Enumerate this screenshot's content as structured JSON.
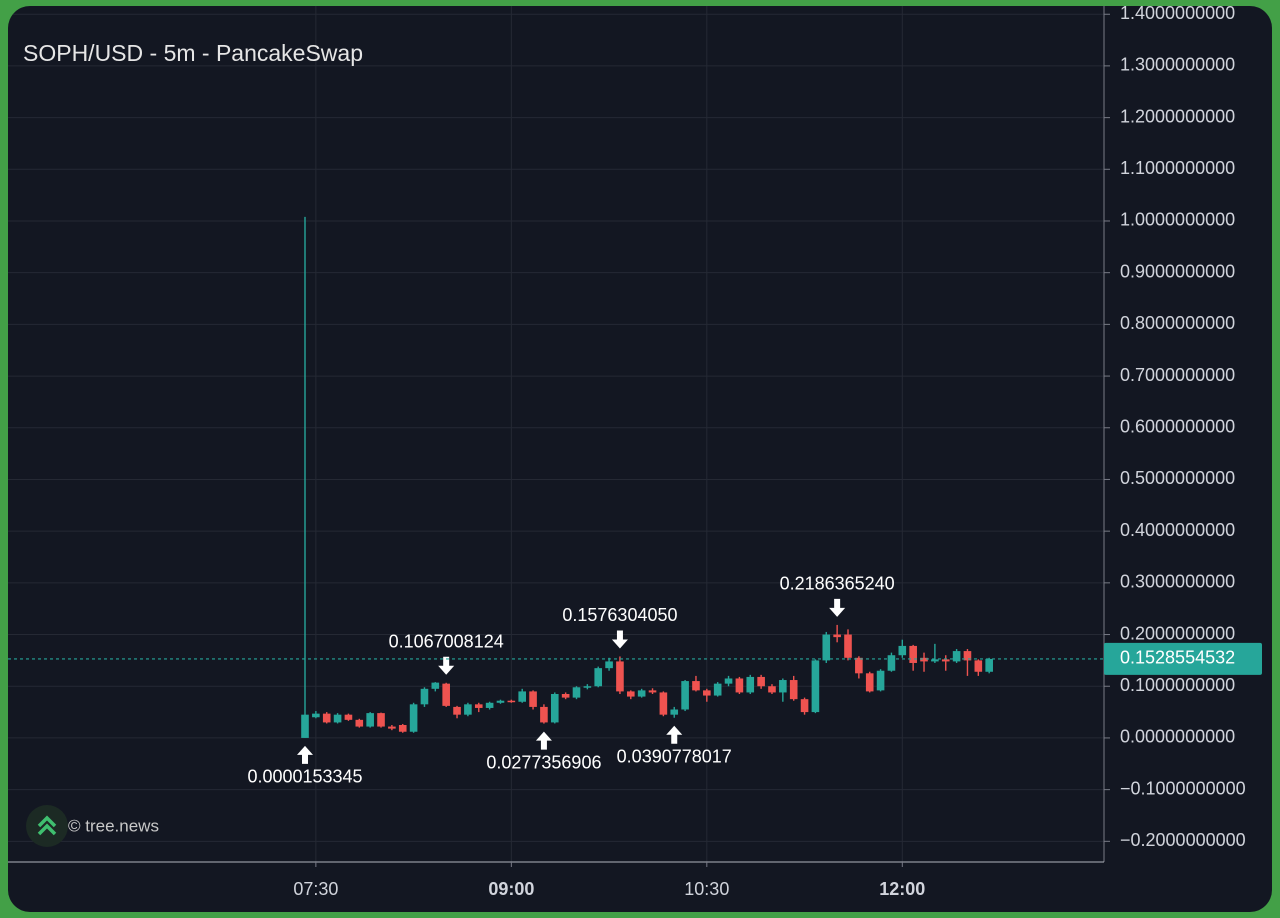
{
  "chart_data": {
    "type": "candlestick",
    "title": "SOPH/USD - 5m - PancakeSwap",
    "watermark": "© tree.news",
    "up_color": "#26a69a",
    "down_color": "#ef5350",
    "grid": true,
    "x": [
      "07:25",
      "07:30",
      "07:35",
      "07:40",
      "07:45",
      "07:50",
      "07:55",
      "08:00",
      "08:05",
      "08:10",
      "08:15",
      "08:20",
      "08:25",
      "08:30",
      "08:35",
      "08:40",
      "08:45",
      "08:50",
      "08:55",
      "09:00",
      "09:05",
      "09:10",
      "09:15",
      "09:20",
      "09:25",
      "09:30",
      "09:35",
      "09:40",
      "09:45",
      "09:50",
      "09:55",
      "10:00",
      "10:05",
      "10:10",
      "10:15",
      "10:20",
      "10:25",
      "10:30",
      "10:35",
      "10:40",
      "10:45",
      "10:50",
      "10:55",
      "11:00",
      "11:05",
      "11:10",
      "11:15",
      "11:20",
      "11:25",
      "11:30",
      "11:35",
      "11:40",
      "11:45",
      "11:50",
      "11:55",
      "12:00",
      "12:05",
      "12:10",
      "12:15",
      "12:20",
      "12:25",
      "12:30",
      "12:35",
      "12:40"
    ],
    "open": [
      2e-05,
      0.04,
      0.047,
      0.03,
      0.045,
      0.035,
      0.022,
      0.048,
      0.022,
      0.025,
      0.012,
      0.065,
      0.095,
      0.105,
      0.06,
      0.045,
      0.065,
      0.058,
      0.068,
      0.072,
      0.07,
      0.09,
      0.06,
      0.03,
      0.085,
      0.078,
      0.098,
      0.1,
      0.135,
      0.148,
      0.09,
      0.08,
      0.092,
      0.088,
      0.045,
      0.055,
      0.11,
      0.092,
      0.082,
      0.105,
      0.115,
      0.088,
      0.118,
      0.1,
      0.088,
      0.112,
      0.075,
      0.05,
      0.15,
      0.2,
      0.2,
      0.155,
      0.125,
      0.092,
      0.13,
      0.16,
      0.178,
      0.155,
      0.148,
      0.152,
      0.148,
      0.168,
      0.15,
      0.128
    ],
    "high": [
      1.0079,
      0.052,
      0.05,
      0.048,
      0.047,
      0.037,
      0.05,
      0.049,
      0.025,
      0.027,
      0.068,
      0.098,
      0.108,
      0.1067008124,
      0.062,
      0.068,
      0.068,
      0.07,
      0.074,
      0.074,
      0.095,
      0.092,
      0.065,
      0.088,
      0.088,
      0.1,
      0.104,
      0.138,
      0.155,
      0.157630405,
      0.092,
      0.095,
      0.096,
      0.09,
      0.06,
      0.112,
      0.12,
      0.095,
      0.108,
      0.12,
      0.118,
      0.122,
      0.122,
      0.104,
      0.115,
      0.12,
      0.078,
      0.152,
      0.205,
      0.218636524,
      0.21,
      0.158,
      0.128,
      0.133,
      0.165,
      0.19,
      0.18,
      0.165,
      0.182,
      0.16,
      0.172,
      0.172,
      0.152,
      0.155
    ],
    "low": [
      1.53345e-05,
      0.038,
      0.028,
      0.028,
      0.033,
      0.02,
      0.02,
      0.02,
      0.015,
      0.01,
      0.01,
      0.06,
      0.09,
      0.06,
      0.038,
      0.042,
      0.05,
      0.055,
      0.066,
      0.068,
      0.068,
      0.055,
      0.0277356906,
      0.028,
      0.075,
      0.075,
      0.094,
      0.098,
      0.13,
      0.085,
      0.075,
      0.078,
      0.085,
      0.042,
      0.0390778017,
      0.052,
      0.09,
      0.07,
      0.08,
      0.1,
      0.085,
      0.085,
      0.095,
      0.085,
      0.07,
      0.072,
      0.045,
      0.048,
      0.145,
      0.185,
      0.15,
      0.115,
      0.088,
      0.09,
      0.128,
      0.155,
      0.13,
      0.128,
      0.145,
      0.13,
      0.145,
      0.12,
      0.12,
      0.125
    ],
    "close": [
      0.045,
      0.047,
      0.03,
      0.045,
      0.035,
      0.022,
      0.048,
      0.022,
      0.018,
      0.012,
      0.065,
      0.095,
      0.107,
      0.062,
      0.045,
      0.065,
      0.058,
      0.068,
      0.072,
      0.07,
      0.09,
      0.06,
      0.03,
      0.085,
      0.078,
      0.098,
      0.1,
      0.135,
      0.148,
      0.09,
      0.08,
      0.092,
      0.088,
      0.045,
      0.055,
      0.11,
      0.092,
      0.082,
      0.105,
      0.115,
      0.088,
      0.118,
      0.1,
      0.088,
      0.112,
      0.075,
      0.05,
      0.15,
      0.2,
      0.195,
      0.155,
      0.125,
      0.09,
      0.13,
      0.16,
      0.178,
      0.145,
      0.148,
      0.152,
      0.148,
      0.168,
      0.15,
      0.128,
      0.1528554532
    ],
    "xticks": [
      "07:30",
      "09:00",
      "10:30",
      "12:00"
    ],
    "ylim": [
      -0.24,
      1.412
    ],
    "yticks": [
      {
        "value": -0.2,
        "label": "−0.2000000000"
      },
      {
        "value": -0.1,
        "label": "−0.1000000000"
      },
      {
        "value": 0,
        "label": "0.0000000000"
      },
      {
        "value": 0.1,
        "label": "0.1000000000"
      },
      {
        "value": 0.2,
        "label": "0.2000000000"
      },
      {
        "value": 0.3,
        "label": "0.3000000000"
      },
      {
        "value": 0.4,
        "label": "0.4000000000"
      },
      {
        "value": 0.5,
        "label": "0.5000000000"
      },
      {
        "value": 0.6,
        "label": "0.6000000000"
      },
      {
        "value": 0.7,
        "label": "0.7000000000"
      },
      {
        "value": 0.8,
        "label": "0.8000000000"
      },
      {
        "value": 0.9,
        "label": "0.9000000000"
      },
      {
        "value": 1.0,
        "label": "1.0000000000"
      },
      {
        "value": 1.1,
        "label": "1.1000000000"
      },
      {
        "value": 1.2,
        "label": "1.2000000000"
      },
      {
        "value": 1.3,
        "label": "1.3000000000"
      },
      {
        "value": 1.4,
        "label": "1.4000000000"
      }
    ],
    "annotations": [
      {
        "x": "07:25",
        "at": "low",
        "label": "0.0000153345"
      },
      {
        "x": "08:30",
        "at": "high",
        "label": "0.1067008124"
      },
      {
        "x": "09:15",
        "at": "low",
        "label": "0.0277356906"
      },
      {
        "x": "09:50",
        "at": "high",
        "label": "0.1576304050"
      },
      {
        "x": "10:15",
        "at": "low",
        "label": "0.0390778017"
      },
      {
        "x": "11:30",
        "at": "high",
        "label": "0.2186365240"
      }
    ]
  }
}
